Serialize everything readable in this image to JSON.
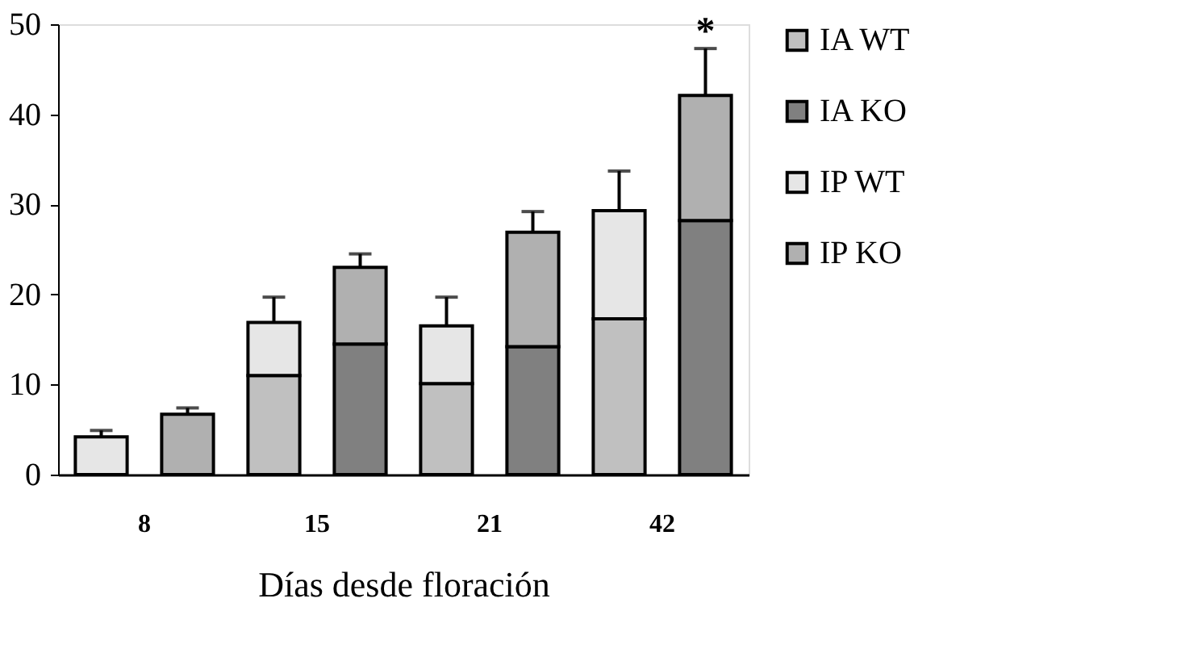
{
  "chart_data": {
    "type": "bar",
    "stacked": true,
    "xlabel": "Días desde floración",
    "categories": [
      "8",
      null,
      "15",
      null,
      "21",
      null,
      "42",
      null
    ],
    "series": [
      {
        "name": "IA WT",
        "color": "#c0c0c0",
        "values": [
          0,
          null,
          11.0,
          null,
          10.1,
          null,
          17.3,
          null
        ]
      },
      {
        "name": "IA KO",
        "color": "#808080",
        "values": [
          null,
          0,
          null,
          14.5,
          null,
          14.2,
          null,
          28.2
        ]
      },
      {
        "name": "IP WT",
        "color": "#e6e6e6",
        "values": [
          4.2,
          null,
          5.9,
          null,
          6.4,
          null,
          12.0,
          null
        ],
        "errors": [
          0.7,
          null,
          2.8,
          null,
          3.2,
          null,
          4.4,
          null
        ]
      },
      {
        "name": "IP KO",
        "color": "#b0b0b0",
        "values": [
          null,
          6.7,
          null,
          8.5,
          null,
          12.7,
          null,
          13.9
        ],
        "errors": [
          null,
          0.7,
          null,
          1.5,
          null,
          2.3,
          null,
          5.2
        ]
      }
    ],
    "annotations": [
      "*"
    ],
    "ylim": [
      0,
      50
    ],
    "yticks": [
      0,
      10,
      20,
      30,
      40,
      50
    ],
    "grid": false,
    "legend": "right"
  }
}
